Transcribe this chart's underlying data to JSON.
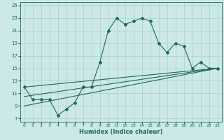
{
  "xlabel": "Humidex (Indice chaleur)",
  "bg_color": "#cde8e8",
  "grid_color": "#aacfcf",
  "line_color": "#1a6b5a",
  "xlim": [
    -0.5,
    23.5
  ],
  "ylim": [
    6.5,
    25.5
  ],
  "xticks": [
    0,
    1,
    2,
    3,
    4,
    5,
    6,
    7,
    8,
    9,
    10,
    11,
    12,
    13,
    14,
    15,
    16,
    17,
    18,
    19,
    20,
    21,
    22,
    23
  ],
  "yticks": [
    7,
    9,
    11,
    13,
    15,
    17,
    19,
    21,
    23,
    25
  ],
  "main_series": {
    "x": [
      0,
      1,
      2,
      3,
      4,
      5,
      6,
      7,
      8,
      9,
      10,
      11,
      12,
      13,
      14,
      15,
      16,
      17,
      18,
      19,
      20,
      21,
      22,
      23
    ],
    "y": [
      12,
      10,
      10,
      10,
      7.5,
      8.5,
      9.5,
      12,
      12,
      16,
      21,
      23,
      22,
      22.5,
      23,
      22.5,
      19,
      17.5,
      19,
      18.5,
      15,
      16,
      15,
      15
    ]
  },
  "linear_series": [
    {
      "x0": 0,
      "y0": 9.0,
      "x1": 23,
      "y1": 15.0
    },
    {
      "x0": 0,
      "y0": 10.5,
      "x1": 23,
      "y1": 15.0
    },
    {
      "x0": 0,
      "y0": 12.0,
      "x1": 23,
      "y1": 15.0
    }
  ]
}
